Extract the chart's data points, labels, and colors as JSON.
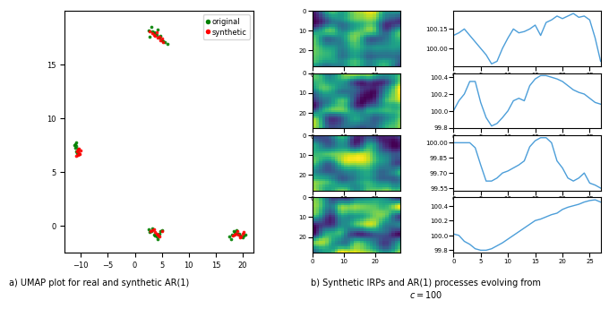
{
  "umap_clusters": [
    {
      "x": [
        -11.2,
        -10.8,
        -10.5,
        -10.9,
        -11.0,
        -10.7,
        -11.1,
        -10.6,
        -10.4,
        -10.95
      ],
      "y": [
        7.5,
        7.8,
        7.2,
        6.9,
        7.6,
        6.8,
        7.3,
        7.0,
        6.7,
        7.4
      ],
      "color": "green"
    },
    {
      "x": [
        -10.6,
        -10.3,
        -10.1,
        -10.5,
        -10.8,
        -10.4,
        -10.7,
        -10.2
      ],
      "y": [
        7.1,
        6.8,
        7.0,
        6.6,
        6.5,
        7.2,
        6.9,
        6.7
      ],
      "color": "red"
    },
    {
      "x": [
        2.5,
        3.0,
        3.5,
        4.0,
        4.5,
        5.0,
        5.5,
        6.0,
        4.2,
        3.8,
        4.8,
        5.2,
        3.2,
        2.8
      ],
      "y": [
        18.2,
        18.5,
        18.0,
        17.8,
        17.5,
        17.3,
        17.1,
        16.9,
        18.3,
        17.9,
        17.7,
        17.2,
        18.1,
        17.6
      ],
      "color": "green"
    },
    {
      "x": [
        2.8,
        3.2,
        3.8,
        4.3,
        4.8,
        5.3,
        4.0,
        3.5,
        5.0,
        4.5
      ],
      "y": [
        18.1,
        17.9,
        17.7,
        17.5,
        17.3,
        17.1,
        18.0,
        17.8,
        17.4,
        17.6
      ],
      "color": "red"
    },
    {
      "x": [
        2.5,
        3.0,
        3.5,
        4.0,
        4.5,
        5.0,
        3.2,
        3.8,
        4.2,
        2.8,
        4.8
      ],
      "y": [
        -0.3,
        -0.5,
        -0.8,
        -1.0,
        -0.7,
        -0.4,
        -0.2,
        -0.9,
        -1.2,
        -0.6,
        -0.5
      ],
      "color": "green"
    },
    {
      "x": [
        3.2,
        3.7,
        4.2,
        4.6,
        5.0,
        3.5,
        4.0,
        2.9,
        4.4
      ],
      "y": [
        -0.4,
        -0.6,
        -0.8,
        -1.0,
        -0.5,
        -0.3,
        -0.7,
        -0.5,
        -0.9
      ],
      "color": "red"
    },
    {
      "x": [
        17.5,
        18.0,
        18.5,
        19.0,
        19.5,
        20.0,
        20.5,
        17.8,
        18.3,
        18.8,
        19.3,
        20.2
      ],
      "y": [
        -1.0,
        -0.8,
        -0.6,
        -0.7,
        -0.9,
        -1.1,
        -0.8,
        -1.2,
        -0.5,
        -0.4,
        -0.7,
        -0.9
      ],
      "color": "green"
    },
    {
      "x": [
        18.2,
        18.7,
        19.2,
        19.7,
        20.2,
        19.0,
        19.5,
        18.5,
        20.0
      ],
      "y": [
        -0.9,
        -0.7,
        -0.8,
        -1.0,
        -0.6,
        -0.5,
        -1.1,
        -0.8,
        -0.7
      ],
      "color": "red"
    }
  ],
  "umap_xlim": [
    -13,
    22
  ],
  "umap_ylim": [
    -2.5,
    20
  ],
  "umap_xticks": [
    -10,
    -5,
    0,
    5,
    10,
    15,
    20
  ],
  "umap_yticks": [
    0,
    5,
    10,
    15
  ],
  "caption_a": "a) UMAP plot for real and synthetic AR(1)",
  "caption_b": "b) Synthetic IRPs and AR(1) processes evolving from\n$c = 100$",
  "line_color": "#4C9ED9",
  "line_width": 1.0,
  "ts1": [
    100.1,
    100.12,
    100.15,
    100.1,
    100.05,
    100.0,
    99.95,
    99.88,
    99.9,
    100.0,
    100.08,
    100.15,
    100.12,
    100.13,
    100.15,
    100.18,
    100.1,
    100.2,
    100.22,
    100.25,
    100.23,
    100.25,
    100.27,
    100.24,
    100.25,
    100.22,
    100.08,
    99.9
  ],
  "ts2": [
    100.0,
    100.12,
    100.2,
    100.35,
    100.35,
    100.1,
    99.92,
    99.82,
    99.85,
    99.92,
    100.0,
    100.12,
    100.15,
    100.12,
    100.3,
    100.38,
    100.42,
    100.42,
    100.4,
    100.38,
    100.35,
    100.3,
    100.25,
    100.22,
    100.2,
    100.15,
    100.1,
    100.08
  ],
  "ts3": [
    100.0,
    100.0,
    100.0,
    100.0,
    99.95,
    99.78,
    99.62,
    99.62,
    99.65,
    99.7,
    99.72,
    99.75,
    99.78,
    99.82,
    99.96,
    100.02,
    100.05,
    100.05,
    100.0,
    99.82,
    99.75,
    99.65,
    99.62,
    99.65,
    99.7,
    99.6,
    99.58,
    99.55
  ],
  "ts4": [
    100.02,
    100.0,
    99.92,
    99.88,
    99.82,
    99.8,
    99.8,
    99.82,
    99.86,
    99.9,
    99.95,
    100.0,
    100.05,
    100.1,
    100.15,
    100.2,
    100.22,
    100.25,
    100.28,
    100.3,
    100.35,
    100.38,
    100.4,
    100.42,
    100.45,
    100.47,
    100.48,
    100.45
  ]
}
